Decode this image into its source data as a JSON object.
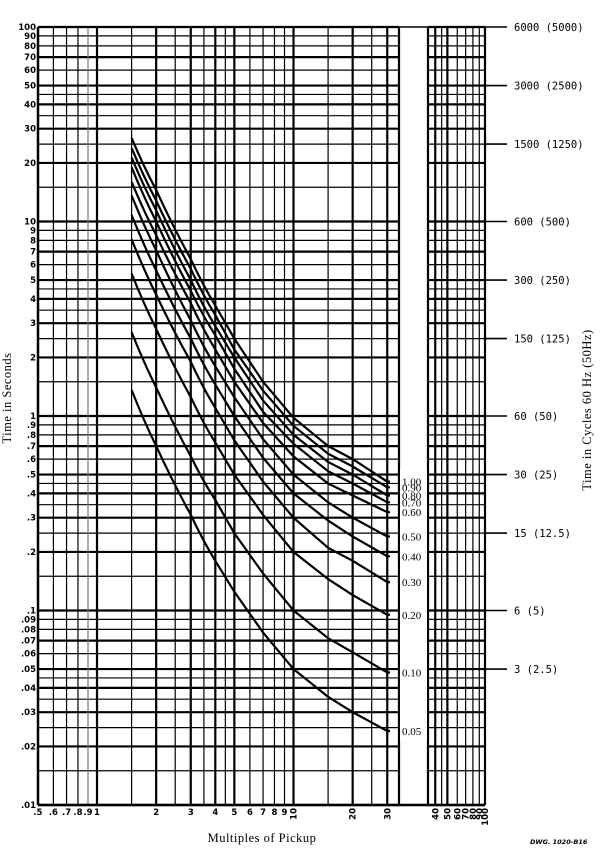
{
  "chart_data": {
    "type": "line",
    "title": "",
    "xlabel": "Multiples of Pickup",
    "ylabel": "Time in Seconds",
    "y2label": "Time in Cycles 60 Hz (50Hz)",
    "drawing_number": "DWG. 1020-B16",
    "xscale": "log",
    "yscale": "log",
    "xlim": [
      0.5,
      100
    ],
    "ylim": [
      0.01,
      100
    ],
    "grid": true,
    "x_tick_labels": [
      ".5",
      ".6",
      ".7",
      ".8",
      ".9",
      "1",
      "2",
      "3",
      "4",
      "5",
      "6",
      "7",
      "8",
      "9",
      "10",
      "20",
      "30",
      "40",
      "50",
      "60",
      "70",
      "80",
      "90",
      "100"
    ],
    "y_tick_labels": [
      "100",
      "90",
      "80",
      "70",
      "60",
      "50",
      "40",
      "30",
      "20",
      "10",
      "9",
      "8",
      "7",
      "6",
      "5",
      "4",
      "3",
      "2",
      "1",
      ".9",
      ".8",
      ".7",
      ".6",
      ".5",
      ".4",
      ".3",
      ".2",
      ".1",
      ".09",
      ".08",
      ".07",
      ".06",
      ".05",
      ".04",
      ".03",
      ".02",
      ".01"
    ],
    "right_axis_labels": [
      {
        "seconds": 100,
        "label": "6000  (5000)"
      },
      {
        "seconds": 50,
        "label": "3000  (2500)"
      },
      {
        "seconds": 25,
        "label": "1500  (1250)"
      },
      {
        "seconds": 10,
        "label": "600  (500)"
      },
      {
        "seconds": 5,
        "label": "300  (250)"
      },
      {
        "seconds": 2.5,
        "label": "150  (125)"
      },
      {
        "seconds": 1,
        "label": "60  (50)"
      },
      {
        "seconds": 0.5,
        "label": "30  (25)"
      },
      {
        "seconds": 0.25,
        "label": "15  (12.5)"
      },
      {
        "seconds": 0.1,
        "label": "6  (5)"
      },
      {
        "seconds": 0.05,
        "label": "3  (2.5)"
      }
    ],
    "x": [
      1.5,
      2,
      3,
      4,
      5,
      7,
      10,
      15,
      20,
      30
    ],
    "series": [
      {
        "name": "1.00",
        "values": [
          26.9,
          14.5,
          6.4,
          3.7,
          2.5,
          1.5,
          0.98,
          0.7,
          0.6,
          0.46
        ]
      },
      {
        "name": "0.90",
        "values": [
          23.9,
          12.8,
          5.7,
          3.3,
          2.2,
          1.35,
          0.89,
          0.64,
          0.55,
          0.43
        ]
      },
      {
        "name": "0.80",
        "values": [
          21.3,
          11.4,
          5.0,
          2.9,
          2.0,
          1.2,
          0.8,
          0.58,
          0.5,
          0.39
        ]
      },
      {
        "name": "0.70",
        "values": [
          19.0,
          10.0,
          4.4,
          2.6,
          1.75,
          1.05,
          0.72,
          0.52,
          0.45,
          0.36
        ]
      },
      {
        "name": "0.60",
        "values": [
          16.0,
          8.5,
          3.8,
          2.2,
          1.5,
          0.92,
          0.62,
          0.45,
          0.39,
          0.32
        ]
      },
      {
        "name": "0.50",
        "values": [
          13.6,
          7.1,
          3.1,
          1.8,
          1.25,
          0.76,
          0.5,
          0.36,
          0.3,
          0.24
        ]
      },
      {
        "name": "0.40",
        "values": [
          10.8,
          5.6,
          2.5,
          1.45,
          1.0,
          0.61,
          0.4,
          0.29,
          0.24,
          0.19
        ]
      },
      {
        "name": "0.30",
        "values": [
          8.1,
          4.2,
          1.9,
          1.1,
          0.75,
          0.46,
          0.3,
          0.21,
          0.18,
          0.14
        ]
      },
      {
        "name": "0.20",
        "values": [
          5.4,
          2.8,
          1.25,
          0.73,
          0.5,
          0.31,
          0.2,
          0.145,
          0.12,
          0.095
        ]
      },
      {
        "name": "0.10",
        "values": [
          2.7,
          1.4,
          0.62,
          0.37,
          0.25,
          0.155,
          0.1,
          0.072,
          0.061,
          0.048
        ]
      },
      {
        "name": "0.05",
        "values": [
          1.36,
          0.7,
          0.31,
          0.18,
          0.125,
          0.077,
          0.05,
          0.036,
          0.03,
          0.024
        ]
      }
    ],
    "dial_labels": [
      "1.00",
      "0.90",
      "0.80",
      "0.70",
      "0.60",
      "0.50",
      "0.40",
      "0.30",
      "0.20",
      "0.10",
      "0.05"
    ]
  }
}
